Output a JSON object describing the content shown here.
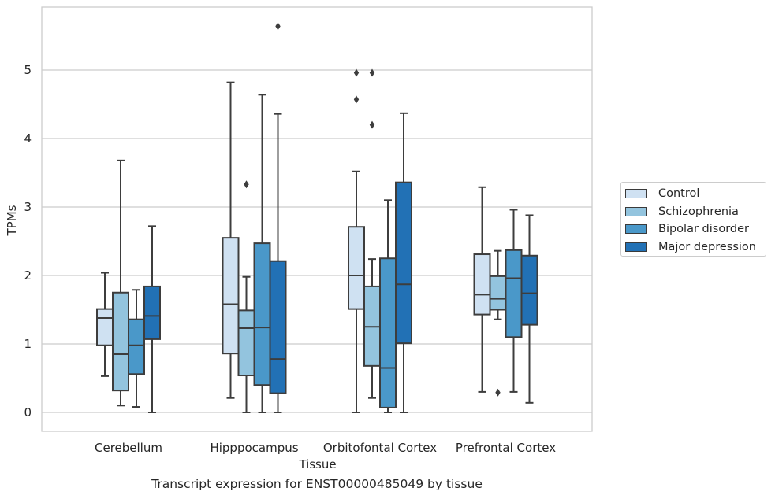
{
  "chart_data": {
    "type": "box",
    "title": "",
    "caption": "Transcript expression for ENST00000485049 by tissue",
    "xlabel": "Tissue",
    "ylabel": "TPMs",
    "ylim": [
      -0.27,
      5.9
    ],
    "yticks": [
      0,
      1,
      2,
      3,
      4,
      5
    ],
    "grid": true,
    "legend_position": "right",
    "categories": [
      "Cerebellum",
      "Hipppocampus",
      "Orbitofontal Cortex",
      "Prefrontal Cortex"
    ],
    "series": [
      {
        "name": "Control",
        "color": "#cfe1f2",
        "boxes": [
          {
            "whisker_low": 0.53,
            "q1": 0.98,
            "median": 1.38,
            "q3": 1.51,
            "whisker_high": 2.04,
            "outliers": []
          },
          {
            "whisker_low": 0.21,
            "q1": 0.86,
            "median": 1.58,
            "q3": 2.55,
            "whisker_high": 4.82,
            "outliers": []
          },
          {
            "whisker_low": 0.0,
            "q1": 1.51,
            "median": 2.0,
            "q3": 2.71,
            "whisker_high": 3.52,
            "outliers": [
              4.57,
              4.96
            ]
          },
          {
            "whisker_low": 0.3,
            "q1": 1.43,
            "median": 1.72,
            "q3": 2.31,
            "whisker_high": 3.29,
            "outliers": []
          }
        ]
      },
      {
        "name": "Schizophrenia",
        "color": "#93c4de",
        "boxes": [
          {
            "whisker_low": 0.1,
            "q1": 0.32,
            "median": 0.85,
            "q3": 1.75,
            "whisker_high": 3.68,
            "outliers": []
          },
          {
            "whisker_low": 0.0,
            "q1": 0.54,
            "median": 1.23,
            "q3": 1.49,
            "whisker_high": 1.98,
            "outliers": [
              3.33
            ]
          },
          {
            "whisker_low": 0.21,
            "q1": 0.68,
            "median": 1.25,
            "q3": 1.84,
            "whisker_high": 2.24,
            "outliers": [
              4.2,
              4.96
            ]
          },
          {
            "whisker_low": 1.36,
            "q1": 1.5,
            "median": 1.66,
            "q3": 1.99,
            "whisker_high": 2.36,
            "outliers": [
              0.29
            ]
          }
        ]
      },
      {
        "name": "Bipolar disorder",
        "color": "#4a98c9",
        "boxes": [
          {
            "whisker_low": 0.08,
            "q1": 0.56,
            "median": 0.98,
            "q3": 1.36,
            "whisker_high": 1.79,
            "outliers": []
          },
          {
            "whisker_low": 0.0,
            "q1": 0.4,
            "median": 1.24,
            "q3": 2.47,
            "whisker_high": 4.64,
            "outliers": []
          },
          {
            "whisker_low": 0.0,
            "q1": 0.07,
            "median": 0.65,
            "q3": 2.25,
            "whisker_high": 3.1,
            "outliers": []
          },
          {
            "whisker_low": 0.3,
            "q1": 1.1,
            "median": 1.96,
            "q3": 2.37,
            "whisker_high": 2.96,
            "outliers": []
          }
        ]
      },
      {
        "name": "Major depression",
        "color": "#2271b5",
        "boxes": [
          {
            "whisker_low": 0.0,
            "q1": 1.07,
            "median": 1.41,
            "q3": 1.84,
            "whisker_high": 2.72,
            "outliers": []
          },
          {
            "whisker_low": 0.0,
            "q1": 0.28,
            "median": 0.78,
            "q3": 2.21,
            "whisker_high": 4.36,
            "outliers": [
              5.64
            ]
          },
          {
            "whisker_low": 0.0,
            "q1": 1.01,
            "median": 1.87,
            "q3": 3.36,
            "whisker_high": 4.37,
            "outliers": []
          },
          {
            "whisker_low": 0.14,
            "q1": 1.28,
            "median": 1.74,
            "q3": 2.29,
            "whisker_high": 2.88,
            "outliers": []
          }
        ]
      }
    ]
  }
}
